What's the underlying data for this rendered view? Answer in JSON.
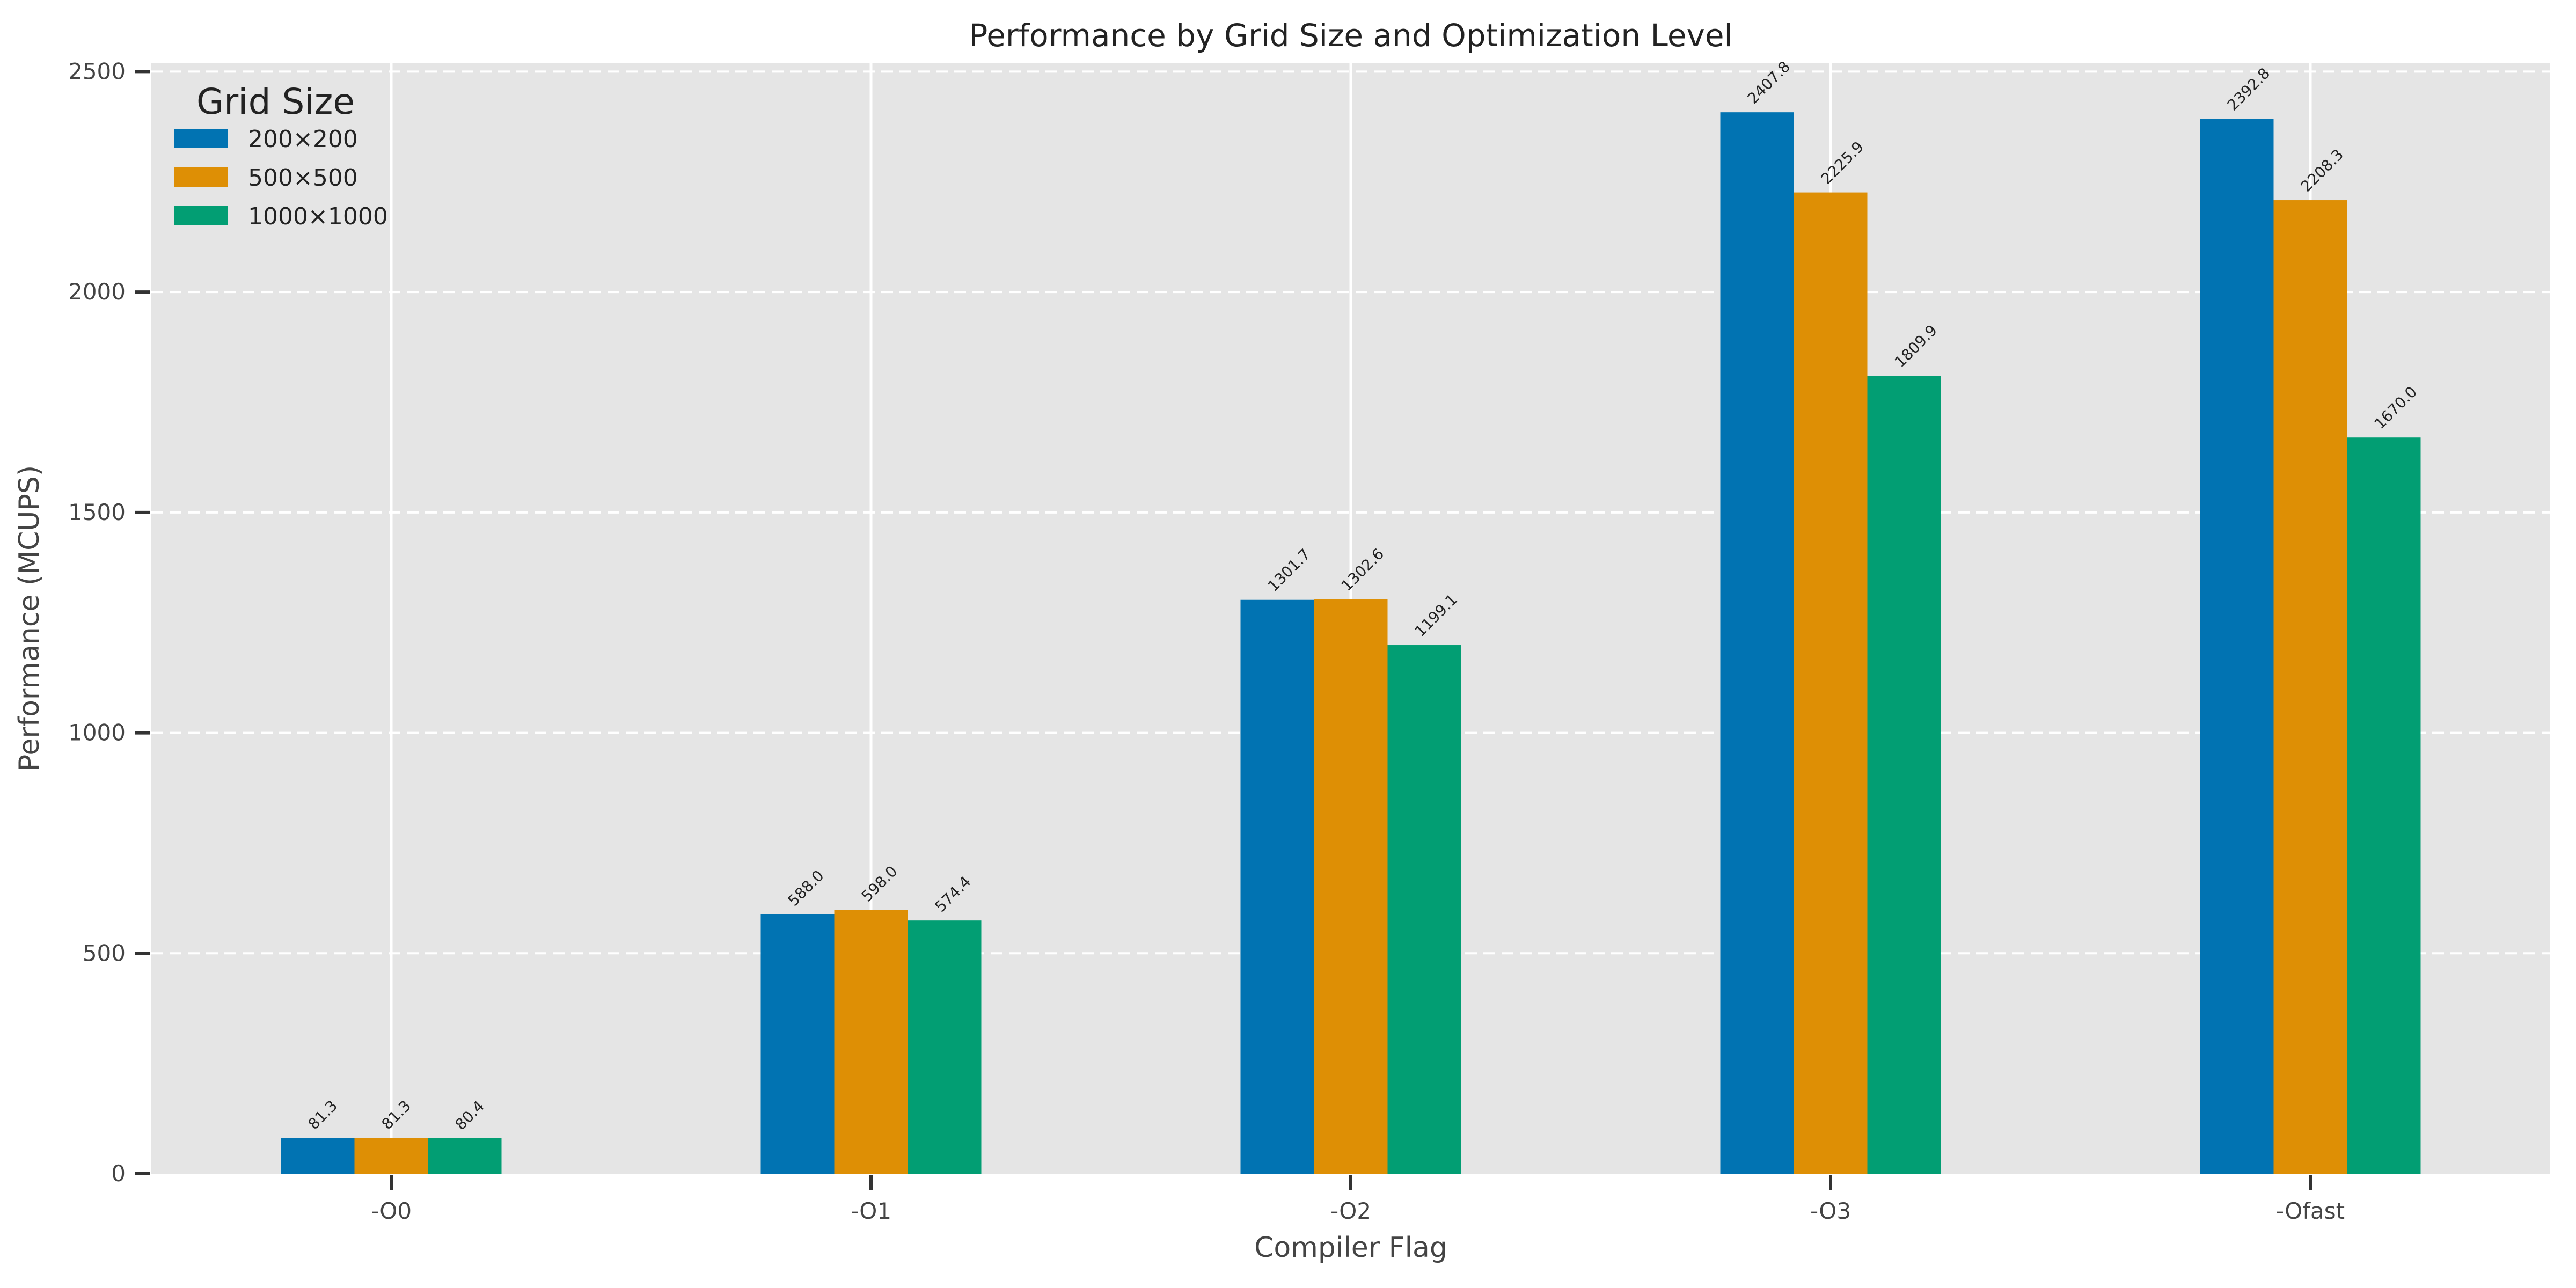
{
  "chart_data": {
    "type": "bar",
    "title": "Performance by Grid Size and Optimization Level",
    "xlabel": "Compiler Flag",
    "ylabel": "Performance (MCUPS)",
    "categories": [
      "-O0",
      "-O1",
      "-O2",
      "-O3",
      "-Ofast"
    ],
    "series": [
      {
        "name": "200×200",
        "color": "#0173B2",
        "values": [
          81.3,
          588.0,
          1301.7,
          2407.8,
          2392.8
        ],
        "labels": [
          "81.3",
          "588.0",
          "1301.7",
          "2407.8",
          "2392.8"
        ]
      },
      {
        "name": "500×500",
        "color": "#DE8F05",
        "values": [
          81.3,
          598.0,
          1302.6,
          2225.9,
          2208.3
        ],
        "labels": [
          "81.3",
          "598.0",
          "1302.6",
          "2225.9",
          "2208.3"
        ]
      },
      {
        "name": "1000×1000",
        "color": "#029E73",
        "values": [
          80.4,
          574.4,
          1199.1,
          1809.9,
          1670.0
        ],
        "labels": [
          "80.4",
          "574.4",
          "1199.1",
          "1809.9",
          "1670.0"
        ]
      }
    ],
    "ylim": [
      0,
      2520
    ],
    "yticks": [
      0,
      500,
      1000,
      1500,
      2000,
      2500
    ],
    "ytick_labels": [
      "0",
      "500",
      "1000",
      "1500",
      "2000",
      "2500"
    ],
    "legend": {
      "title": "Grid Size",
      "position": "top-left"
    },
    "grid": {
      "y": true,
      "y_style": "dashed",
      "x": true
    },
    "background": "#E5E5E5"
  }
}
